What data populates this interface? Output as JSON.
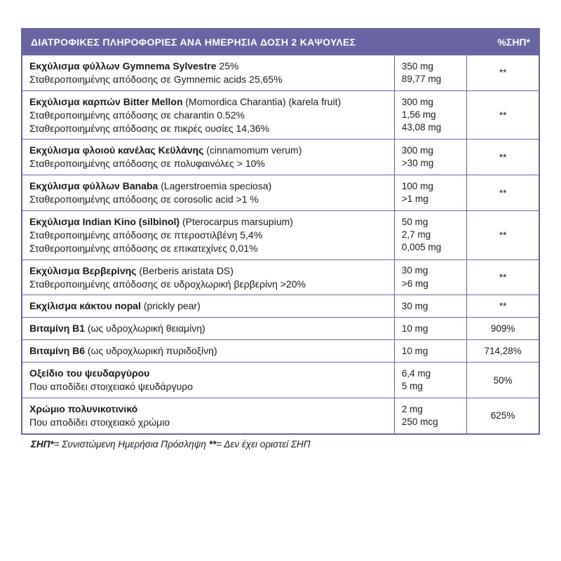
{
  "colors": {
    "border": "#6964a2",
    "header_bg": "#6964a2",
    "header_text": "#ffffff",
    "body_text": "#1a1a1a",
    "background": "#ffffff"
  },
  "typography": {
    "body_fontsize_pt": 10.5,
    "header_fontsize_pt": 10.5,
    "font_family": "Arial"
  },
  "header": {
    "title": "ΔΙΑΤΡΟΦΙΚΕΣ ΠΛΗΡΟΦΟΡΙΕΣ ΑΝΑ ΗΜΕΡΗΣΙΑ ΔΟΣΗ 2 ΚΑΨΟΥΛΕΣ",
    "pct_label": "%ΣΗΠ*"
  },
  "rows": [
    {
      "lines": [
        {
          "bold": "Εκχύλισμα φύλλων Gymnema Sylvestre",
          "rest": " 25%"
        },
        {
          "rest": "Σταθεροποιημένης απόδοσης σε Gymnemic acids 25,65%"
        }
      ],
      "amounts": [
        "350 mg",
        "89,77 mg"
      ],
      "pct": "**"
    },
    {
      "lines": [
        {
          "bold": "Εκχύλισμα καρπών Bitter Mellon",
          "rest": " (Momordica Charantia) (karela fruit)"
        },
        {
          "rest": "Σταθεροποιημένης απόδοσης σε charantin 0.52%"
        },
        {
          "rest": "Σταθεροποιημένης απόδοσης σε πικρές ουσίες 14,36%"
        }
      ],
      "amounts": [
        "300 mg",
        "1,56 mg",
        "43,08 mg"
      ],
      "pct": "**"
    },
    {
      "lines": [
        {
          "bold": "Εκχύλισμα φλοιού κανέλας Κεϋλάνης",
          "rest": " (cinnamomum verum)"
        },
        {
          "rest": "Σταθεροποιημένης απόδοσης σε πολυφαινόλες > 10%"
        }
      ],
      "amounts": [
        "300 mg",
        ">30 mg"
      ],
      "pct": "**"
    },
    {
      "lines": [
        {
          "bold": "Εκχύλισμα φύλλων Banaba",
          "rest": " (Lagerstroemia speciosa)"
        },
        {
          "rest": "Σταθεροποιημένης απόδοσης σε corosolic acid >1 %"
        }
      ],
      "amounts": [
        "100 mg",
        ">1 mg"
      ],
      "pct": "**"
    },
    {
      "lines": [
        {
          "bold": "Εκχύλισμα Indian Kino (silbinol)",
          "rest": " (Pterocarpus marsupium)"
        },
        {
          "rest": "Σταθεροποιημένης απόδοσης σε πτεροστιλβένη 5,4%"
        },
        {
          "rest": "Σταθεροποιημένης απόδοσης σε επικατεχίνες 0,01%"
        }
      ],
      "amounts": [
        "50 mg",
        "2,7 mg",
        "0,005 mg"
      ],
      "pct": "**"
    },
    {
      "lines": [
        {
          "bold": "Εκχύλισμα Βερβερίνης",
          "rest": " (Berberis aristata DS)"
        },
        {
          "rest": "Σταθεροποιημένης απόδοσης σε υδροχλωρική βερβερίνη >20%"
        }
      ],
      "amounts": [
        "30 mg",
        ">6 mg"
      ],
      "pct": "**"
    },
    {
      "lines": [
        {
          "bold": "Εκχίλισμα κάκτου nopal",
          "rest": " (prickly pear)"
        }
      ],
      "amounts": [
        "30 mg"
      ],
      "pct": "**"
    },
    {
      "lines": [
        {
          "bold": "Βιταμίνη B1",
          "rest": " (ως υδροχλωρική θειαμίνη)"
        }
      ],
      "amounts": [
        "10 mg"
      ],
      "pct": "909%"
    },
    {
      "lines": [
        {
          "bold": "Βιταμίνη B6",
          "rest": " (ως υδροχλωρική πυριδοξίνη)"
        }
      ],
      "amounts": [
        "10 mg"
      ],
      "pct": "714,28%"
    },
    {
      "lines": [
        {
          "bold": "Οξείδιο του ψευδαργύρου",
          "rest": ""
        },
        {
          "rest": "Που αποδίδει στοιχειακό ψευδάργυρο"
        }
      ],
      "amounts": [
        "6,4 mg",
        "5 mg"
      ],
      "pct": "50%"
    },
    {
      "lines": [
        {
          "bold": "Χρώμιο πολυνικοτινικό",
          "rest": ""
        },
        {
          "rest": "Που αποδίδει στοιχειακό χρώμιο"
        }
      ],
      "amounts": [
        "2 mg",
        "250 mcg"
      ],
      "pct": "625%"
    }
  ],
  "footnote": {
    "part1_bold": "ΣΗΠ*",
    "part1_rest": "= Συνιστώμενη Ημερήσια Πρόσληψη ",
    "part2_bold": "**",
    "part2_rest": "= Δεν έχει οριστεί ΣΗΠ"
  }
}
